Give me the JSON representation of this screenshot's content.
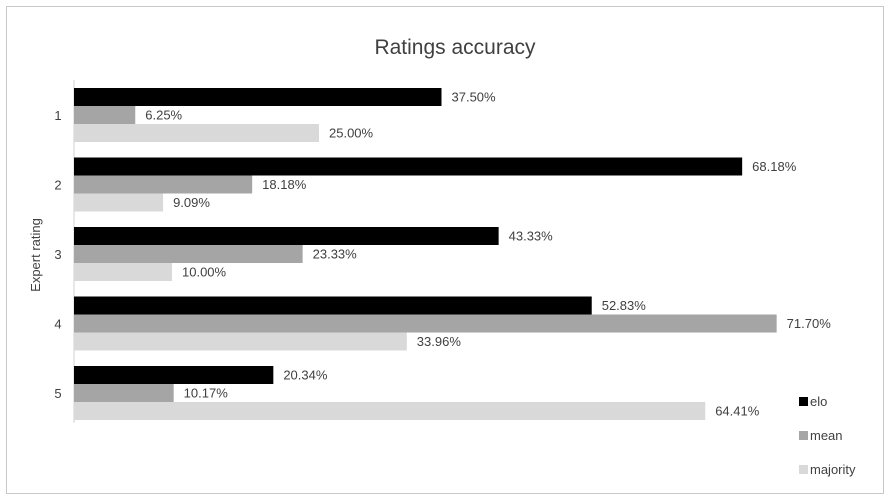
{
  "chart_data": {
    "type": "bar",
    "orientation": "horizontal",
    "title": "Ratings accuracy",
    "ylabel": "Expert rating",
    "xlabel": "",
    "categories": [
      "1",
      "2",
      "3",
      "4",
      "5"
    ],
    "series": [
      {
        "name": "elo",
        "color": "#000000",
        "values": [
          37.5,
          68.18,
          43.33,
          52.83,
          20.34
        ],
        "labels": [
          "37.50%",
          "68.18%",
          "43.33%",
          "52.83%",
          "20.34%"
        ]
      },
      {
        "name": "mean",
        "color": "#a5a5a5",
        "values": [
          6.25,
          18.18,
          23.33,
          71.7,
          10.17
        ],
        "labels": [
          "6.25%",
          "18.18%",
          "23.33%",
          "71.70%",
          "10.17%"
        ]
      },
      {
        "name": "majority",
        "color": "#d9d9d9",
        "values": [
          25.0,
          9.09,
          10.0,
          33.96,
          64.41
        ],
        "labels": [
          "25.00%",
          "9.09%",
          "10.00%",
          "33.96%",
          "64.41%"
        ]
      }
    ],
    "xlim": [
      0,
      100
    ],
    "grid": false,
    "x_axis_visible": false,
    "legend_position": "bottom-right"
  }
}
